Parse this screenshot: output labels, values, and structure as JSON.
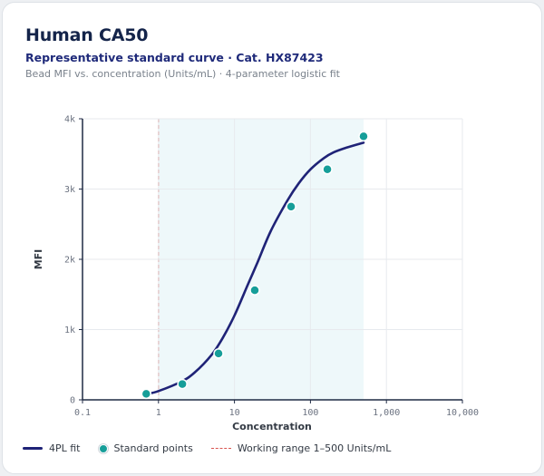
{
  "header": {
    "title": "Human CA50",
    "subtitle": "Representative standard curve · Cat. HX87423",
    "caption": "Bead MFI vs. concentration (Units/mL) · 4-parameter logistic fit"
  },
  "legend": {
    "fit_label": "4PL fit",
    "points_label": "Standard points",
    "range_label": "Working range 1–500 Units/mL"
  },
  "colors": {
    "fit": "#1f2377",
    "points": "#169e99",
    "range_line": "#d9534f",
    "range_fill": "#eef8fa"
  },
  "chart_data": {
    "type": "line",
    "x_scale": "log",
    "xlabel": "Concentration",
    "ylabel": "MFI",
    "xlim": [
      0.1,
      10000
    ],
    "ylim": [
      0,
      4000
    ],
    "x_ticks": [
      0.1,
      1,
      10,
      100,
      1000,
      10000
    ],
    "x_tick_labels": [
      "0.1",
      "1",
      "10",
      "100",
      "1,000",
      "10,000"
    ],
    "y_ticks": [
      0,
      1000,
      2000,
      3000,
      4000
    ],
    "y_tick_labels": [
      "0",
      "1k",
      "2k",
      "3k",
      "4k"
    ],
    "grid": true,
    "working_range": [
      1,
      500
    ],
    "series": [
      {
        "name": "Standard points",
        "kind": "scatter",
        "x": [
          0.69,
          2.06,
          6.17,
          18.5,
          55.6,
          167,
          500
        ],
        "y": [
          85,
          225,
          660,
          1560,
          2750,
          3280,
          3750
        ]
      },
      {
        "name": "4PL fit",
        "kind": "line",
        "x": [
          0.69,
          1,
          2,
          3,
          5,
          7,
          10,
          15,
          20,
          30,
          50,
          70,
          100,
          150,
          200,
          300,
          500
        ],
        "y": [
          80,
          125,
          260,
          390,
          640,
          880,
          1200,
          1640,
          1950,
          2400,
          2840,
          3080,
          3280,
          3440,
          3520,
          3590,
          3660
        ]
      }
    ]
  }
}
